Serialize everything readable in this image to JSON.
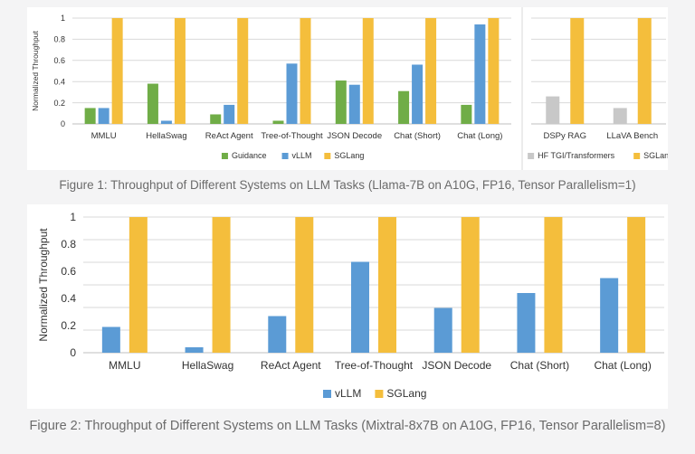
{
  "colors": {
    "guidance": "#70ad47",
    "vllm": "#5b9bd5",
    "sglang": "#f4be3c",
    "hf": "#c8c8c8",
    "grid": "#d9d9d9",
    "axis": "#bfbfbf",
    "text": "#333333",
    "caption": "#6b6b6b"
  },
  "captions": {
    "figure1": "Figure 1: Throughput of Different Systems on LLM Tasks (Llama-7B on A10G, FP16, Tensor Parallelism=1)",
    "figure2": "Figure 2: Throughput of Different Systems on LLM Tasks (Mixtral-8x7B on A10G, FP16, Tensor Parallelism=8)"
  },
  "chart_data": [
    {
      "type": "bar",
      "title": "",
      "xlabel": "",
      "ylabel": "Normalized Throughput",
      "ylim": [
        0,
        1
      ],
      "yticks": [
        "0",
        "0.2",
        "0.4",
        "0.6",
        "0.8",
        "1"
      ],
      "grid": true,
      "legend_position": "bottom",
      "categories": [
        "MMLU",
        "HellaSwag",
        "ReAct Agent",
        "Tree-of-Thought",
        "JSON Decode",
        "Chat (Short)",
        "Chat (Long)"
      ],
      "series": [
        {
          "name": "Guidance",
          "color_key": "guidance",
          "values": [
            0.15,
            0.38,
            0.09,
            0.03,
            0.41,
            0.31,
            0.18
          ]
        },
        {
          "name": "vLLM",
          "color_key": "vllm",
          "values": [
            0.15,
            0.03,
            0.18,
            0.57,
            0.37,
            0.56,
            0.94
          ]
        },
        {
          "name": "SGLang",
          "color_key": "sglang",
          "values": [
            1,
            1,
            1,
            1,
            1,
            1,
            1
          ]
        }
      ]
    },
    {
      "type": "bar",
      "title": "",
      "xlabel": "",
      "ylabel": "",
      "ylim": [
        0,
        1
      ],
      "grid": true,
      "legend_position": "bottom",
      "categories": [
        "DSPy RAG",
        "LLaVA Bench"
      ],
      "series": [
        {
          "name": "HF TGI/Transformers",
          "color_key": "hf",
          "values": [
            0.26,
            0.15
          ]
        },
        {
          "name": "SGLang",
          "color_key": "sglang",
          "values": [
            1,
            1
          ]
        }
      ]
    },
    {
      "type": "bar",
      "title": "",
      "xlabel": "",
      "ylabel": "Normalized Throughput",
      "ylim": [
        0,
        1
      ],
      "yticks": [
        "0",
        "0.2",
        "0.4",
        "0.6",
        "0.8",
        "1"
      ],
      "grid": true,
      "legend_position": "bottom",
      "categories": [
        "MMLU",
        "HellaSwag",
        "ReAct Agent",
        "Tree-of-Thought",
        "JSON Decode",
        "Chat (Short)",
        "Chat (Long)"
      ],
      "series": [
        {
          "name": "vLLM",
          "color_key": "vllm",
          "values": [
            0.19,
            0.04,
            0.27,
            0.67,
            0.33,
            0.44,
            0.55
          ]
        },
        {
          "name": "SGLang",
          "color_key": "sglang",
          "values": [
            1,
            1,
            1,
            1,
            1,
            1,
            1
          ]
        }
      ]
    }
  ]
}
